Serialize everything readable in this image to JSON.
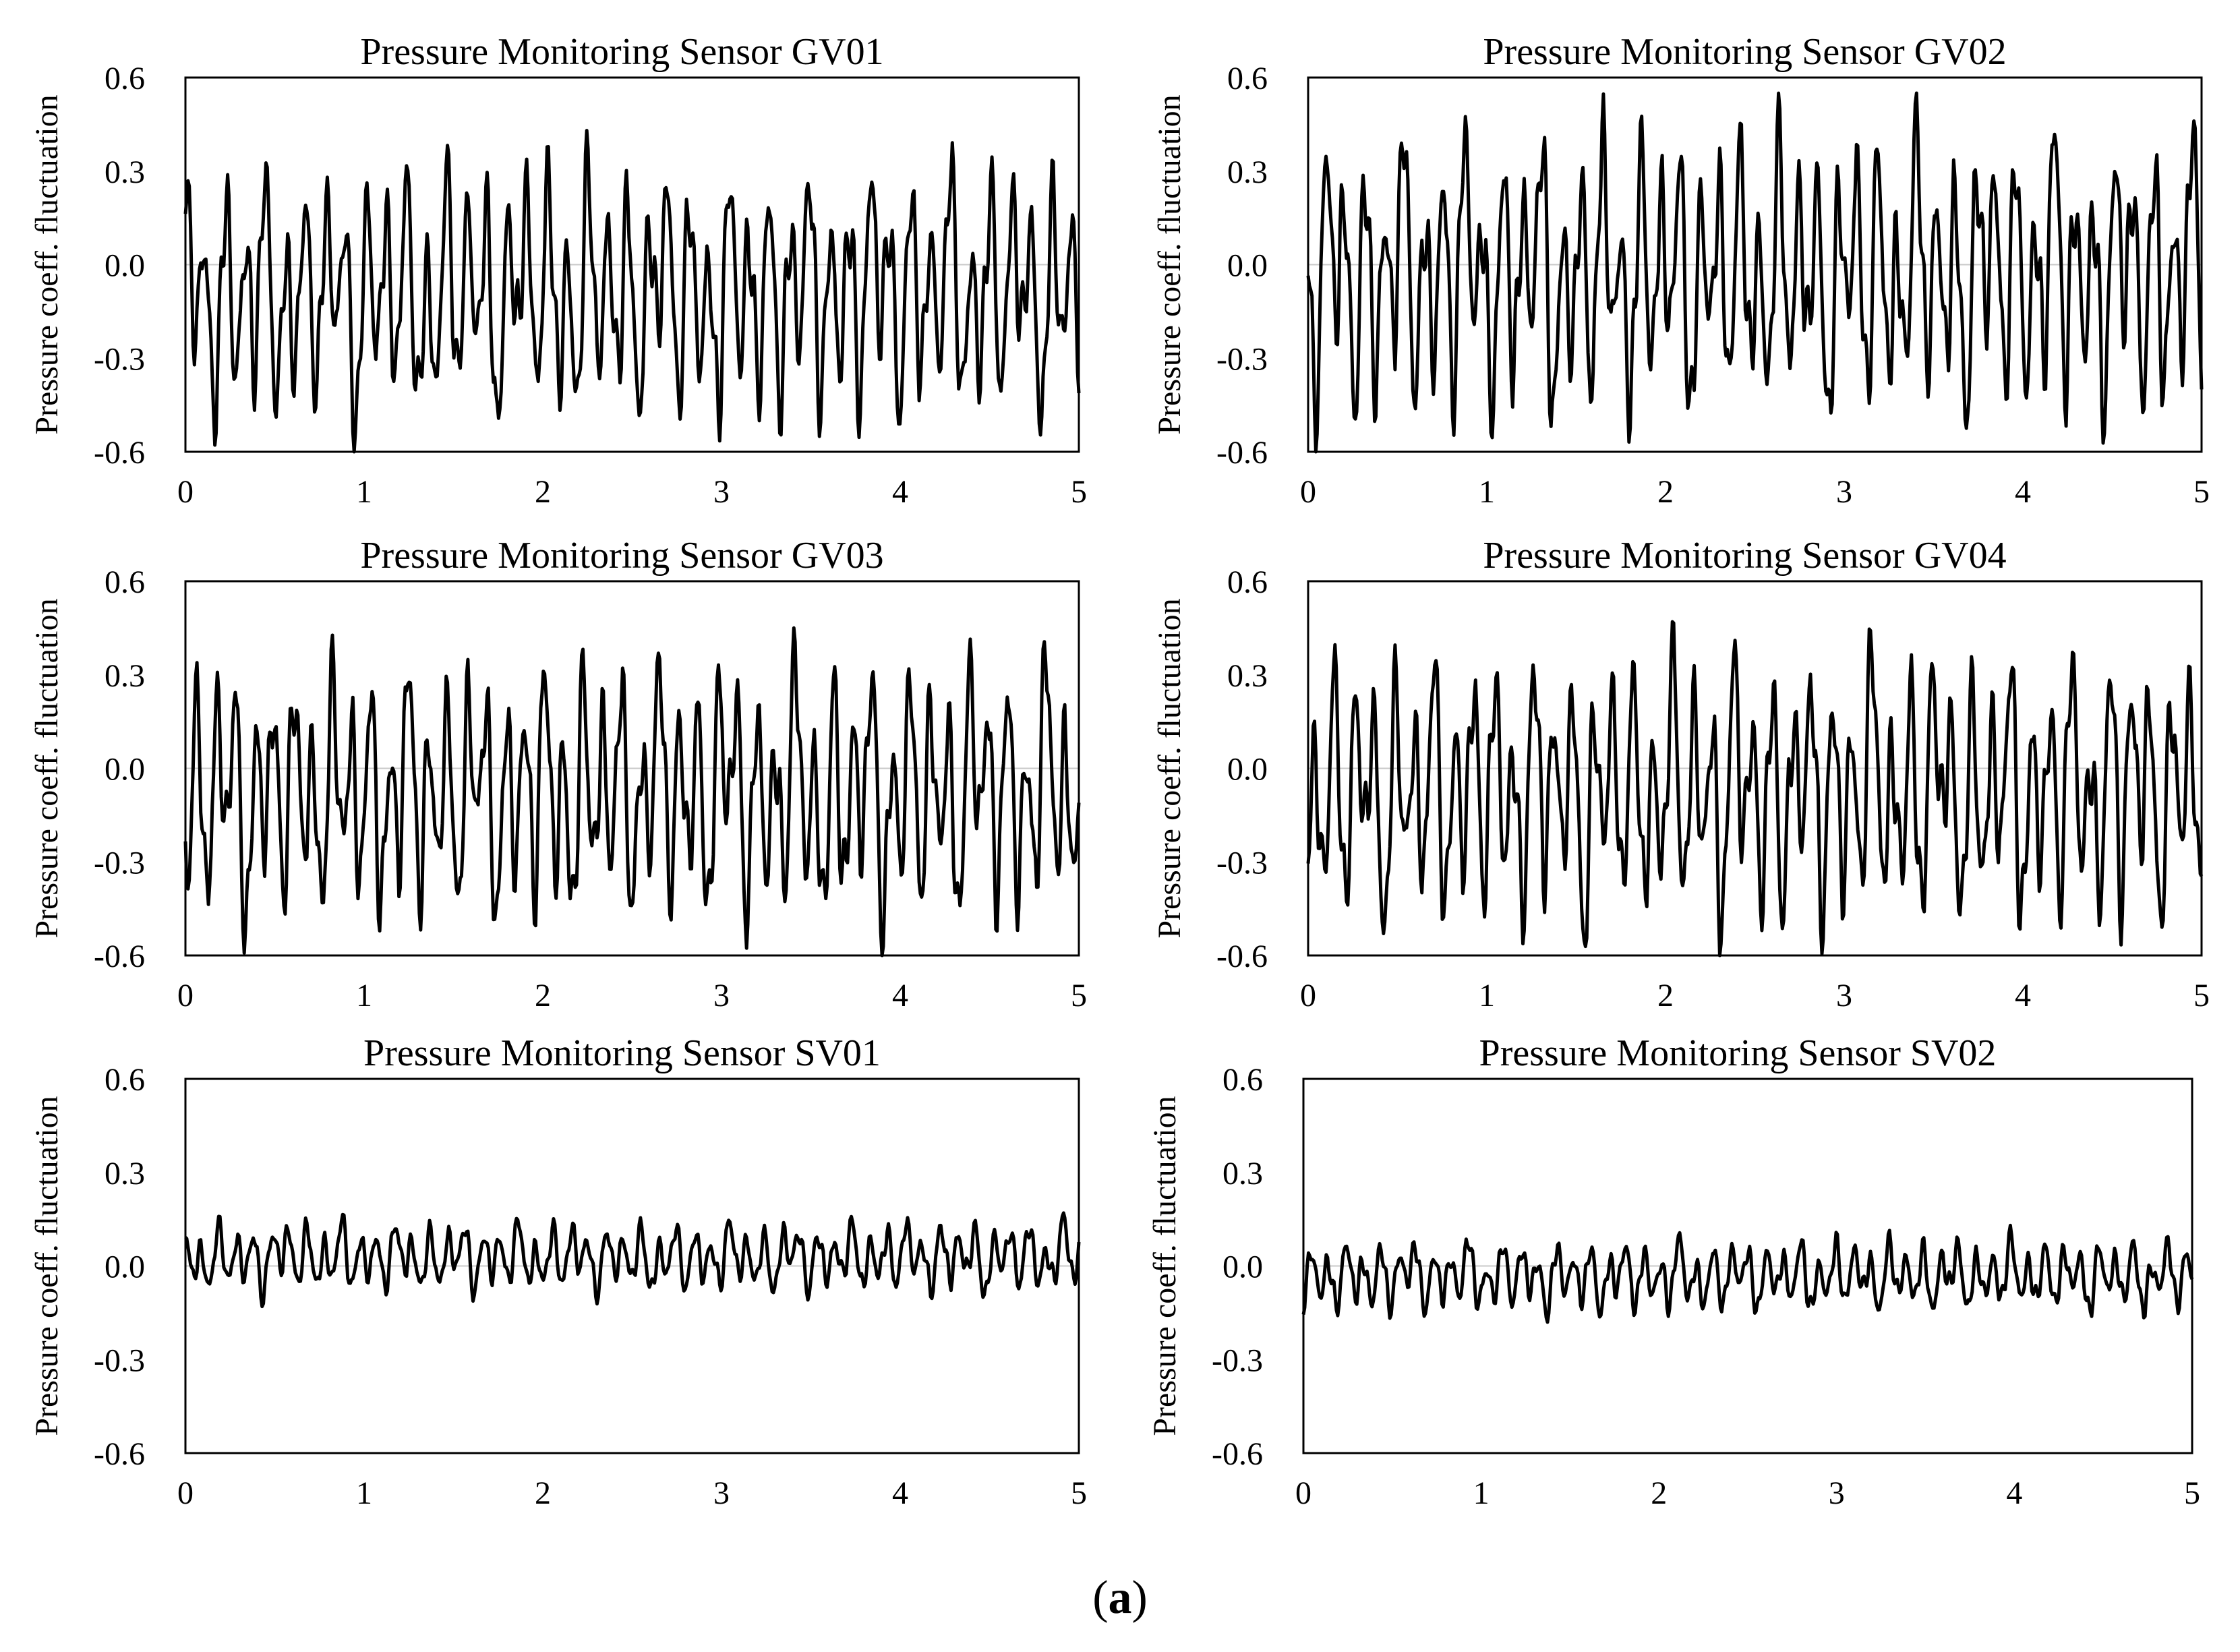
{
  "colors": {
    "series": "#000000",
    "frame": "#000000",
    "zero_line": "#c8c8c8",
    "background": "#ffffff"
  },
  "figure": {
    "caption_open": "(",
    "caption_letter": "a",
    "caption_close": ")"
  },
  "chart_data": [
    {
      "type": "line",
      "title": "Pressure Monitoring Sensor GV01",
      "xlabel": "",
      "ylabel": "Pressure coeff. fluctuation",
      "xlim": [
        0,
        5
      ],
      "ylim": [
        -0.6,
        0.6
      ],
      "xticks": [
        "0",
        "1",
        "2",
        "3",
        "4",
        "5"
      ],
      "yticks": [
        "-0.6",
        "-0.3",
        "0.0",
        "0.3",
        "0.6"
      ],
      "grid": false,
      "legend": "none",
      "series": [
        {
          "amplitude": 0.36,
          "peak_frequency_hz": 9.2,
          "min": -0.6,
          "max": 0.43,
          "seed": 11
        }
      ]
    },
    {
      "type": "line",
      "title": "Pressure Monitoring Sensor GV02",
      "xlabel": "",
      "ylabel": "Pressure coeff. fluctuation",
      "xlim": [
        0,
        5
      ],
      "ylim": [
        -0.6,
        0.6
      ],
      "xticks": [
        "0",
        "1",
        "2",
        "3",
        "4",
        "5"
      ],
      "yticks": [
        "-0.6",
        "-0.3",
        "0.0",
        "0.3",
        "0.6"
      ],
      "grid": false,
      "legend": "none",
      "series": [
        {
          "amplitude": 0.38,
          "peak_frequency_hz": 9.4,
          "min": -0.6,
          "max": 0.55,
          "seed": 23
        }
      ]
    },
    {
      "type": "line",
      "title": "Pressure Monitoring Sensor GV03",
      "xlabel": "",
      "ylabel": "Pressure coeff. fluctuation",
      "xlim": [
        0,
        5
      ],
      "ylim": [
        -0.6,
        0.6
      ],
      "xticks": [
        "0",
        "1",
        "2",
        "3",
        "4",
        "5"
      ],
      "yticks": [
        "-0.6",
        "-0.3",
        "0.0",
        "0.3",
        "0.6"
      ],
      "grid": false,
      "legend": "none",
      "series": [
        {
          "amplitude": 0.37,
          "peak_frequency_hz": 9.6,
          "min": -0.6,
          "max": 0.45,
          "seed": 37
        }
      ]
    },
    {
      "type": "line",
      "title": "Pressure Monitoring Sensor GV04",
      "xlabel": "",
      "ylabel": "Pressure coeff. fluctuation",
      "xlim": [
        0,
        5
      ],
      "ylim": [
        -0.6,
        0.6
      ],
      "xticks": [
        "0",
        "1",
        "2",
        "3",
        "4",
        "5"
      ],
      "yticks": [
        "-0.6",
        "-0.3",
        "0.0",
        "0.3",
        "0.6"
      ],
      "grid": false,
      "legend": "none",
      "series": [
        {
          "amplitude": 0.36,
          "peak_frequency_hz": 9.3,
          "min": -0.6,
          "max": 0.47,
          "seed": 51
        }
      ]
    },
    {
      "type": "line",
      "title": "Pressure Monitoring Sensor SV01",
      "xlabel": "",
      "ylabel": "Pressure coeff. fluctuation",
      "xlim": [
        0,
        5
      ],
      "ylim": [
        -0.6,
        0.6
      ],
      "xticks": [
        "0",
        "1",
        "2",
        "3",
        "4",
        "5"
      ],
      "yticks": [
        "-0.6",
        "-0.3",
        "0.0",
        "0.3",
        "0.6"
      ],
      "grid": false,
      "legend": "none",
      "series": [
        {
          "amplitude": 0.07,
          "peak_frequency_hz": 10.5,
          "min": -0.13,
          "max": 0.17,
          "seed": 67
        }
      ]
    },
    {
      "type": "line",
      "title": "Pressure Monitoring Sensor SV02",
      "xlabel": "",
      "ylabel": "Pressure coeff. fluctuation",
      "xlim": [
        0,
        5
      ],
      "ylim": [
        -0.6,
        0.6
      ],
      "xticks": [
        "0",
        "1",
        "2",
        "3",
        "4",
        "5"
      ],
      "yticks": [
        "-0.6",
        "-0.3",
        "0.0",
        "0.3",
        "0.6"
      ],
      "grid": false,
      "legend": "none",
      "series": [
        {
          "amplitude": 0.07,
          "peak_frequency_hz": 10.5,
          "min": -0.18,
          "max": 0.13,
          "seed": 83
        }
      ]
    }
  ]
}
